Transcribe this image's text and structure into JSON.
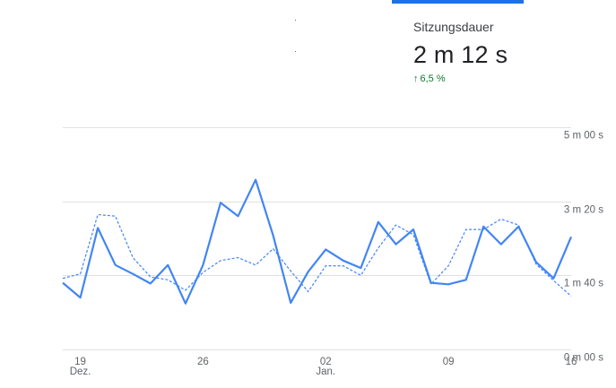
{
  "metric": {
    "title": "Sitzungsdauer",
    "value": "2 m 12 s",
    "change": "6,5 %",
    "change_icon": "arrow-up-icon",
    "change_color": "#137333"
  },
  "colors": {
    "accent": "#1a73e8",
    "series_current": "#4285f4",
    "series_previous": "#4285f4",
    "grid": "#e0e0e0",
    "text": "#5f6368"
  },
  "chart_data": {
    "type": "line",
    "y_axis_position": "right",
    "y_ticks": [
      "5 m 00 s",
      "3 m 20 s",
      "1 m 40 s",
      "0 m 00 s"
    ],
    "y_tick_values": [
      300,
      200,
      100,
      0
    ],
    "ylim": [
      0,
      300
    ],
    "x_ticks": [
      {
        "day": "19",
        "month": "Dez.",
        "index": 1
      },
      {
        "day": "26",
        "month": "",
        "index": 8
      },
      {
        "day": "02",
        "month": "Jan.",
        "index": 15
      },
      {
        "day": "09",
        "month": "",
        "index": 22
      },
      {
        "day": "16",
        "month": "",
        "index": 29
      }
    ],
    "grid": true,
    "series": [
      {
        "style": "solid",
        "values": [
          90,
          70,
          164,
          114,
          102,
          89,
          114,
          62,
          114,
          198,
          180,
          229,
          154,
          63,
          105,
          135,
          120,
          110,
          172,
          142,
          162,
          90,
          88,
          94,
          166,
          142,
          166,
          118,
          96,
          152
        ]
      },
      {
        "style": "dashed",
        "values": [
          96,
          102,
          182,
          180,
          124,
          98,
          94,
          80,
          104,
          120,
          124,
          114,
          136,
          106,
          78,
          113,
          113,
          100,
          137,
          168,
          155,
          88,
          113,
          162,
          162,
          176,
          168,
          115,
          93,
          72
        ]
      }
    ]
  }
}
